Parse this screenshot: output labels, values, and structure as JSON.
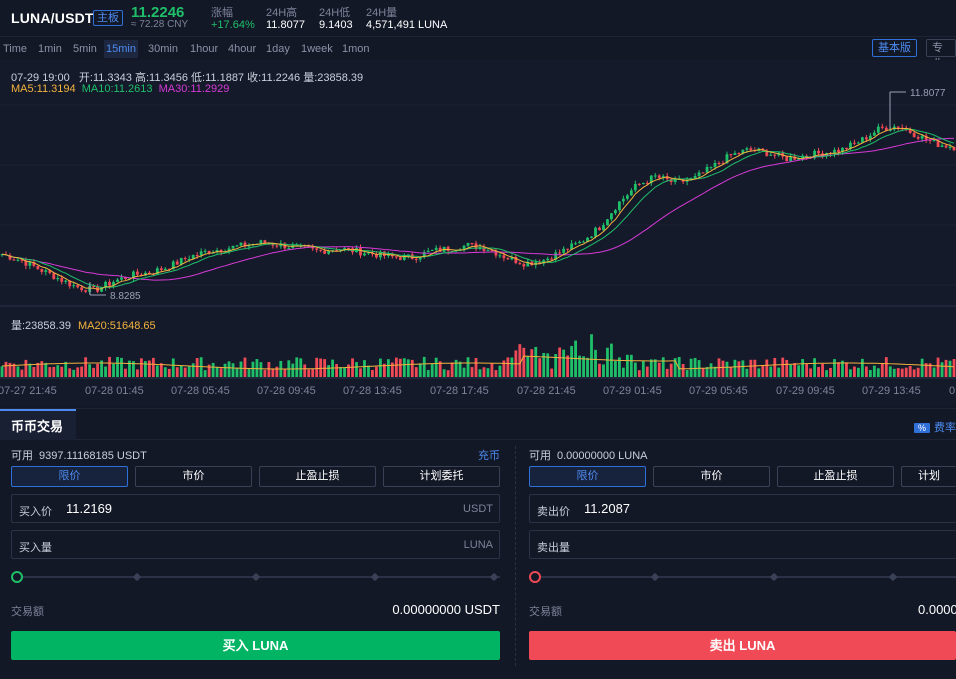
{
  "header": {
    "pair": "LUNA/USDT",
    "board": "主板",
    "last_price": "11.2246",
    "cny": "≈ 72.28 CNY",
    "stats": [
      {
        "label": "涨幅",
        "value": "+17.64%"
      },
      {
        "label": "24H高",
        "value": "11.8077"
      },
      {
        "label": "24H低",
        "value": "9.1403"
      },
      {
        "label": "24H量",
        "value": "4,571,491 LUNA"
      }
    ]
  },
  "timeframes": [
    "Time",
    "1min",
    "5min",
    "15min",
    "30min",
    "1hour",
    "4hour",
    "1day",
    "1week",
    "1mon"
  ],
  "active_timeframe": "15min",
  "version": {
    "basic": "基本版",
    "pro": "专业"
  },
  "ohlc": {
    "time": "07-29 19:00",
    "open": "开:11.3343",
    "high": "高:11.3456",
    "low": "低:11.1887",
    "close": "收:11.2246",
    "vol": "量:23858.39"
  },
  "ma": {
    "ma5": "MA5:11.3194",
    "ma10": "MA10:11.2613",
    "ma30": "MA30:11.2929"
  },
  "volume_legend": {
    "vol": "量:23858.39",
    "ma20": "MA20:51648.65"
  },
  "chart_data": {
    "type": "candlestick",
    "high_marker": "11.8077",
    "low_marker": "8.8285",
    "x_ticks": [
      "07-27 21:45",
      "07-28 01:45",
      "07-28 05:45",
      "07-28 09:45",
      "07-28 13:45",
      "07-28 17:45",
      "07-28 21:45",
      "07-29 01:45",
      "07-29 05:45",
      "07-29 09:45",
      "07-29 13:45",
      "0"
    ],
    "close_path": [
      9.45,
      9.35,
      9.2,
      9.05,
      8.9,
      8.85,
      9.0,
      9.1,
      9.15,
      9.25,
      9.4,
      9.5,
      9.55,
      9.6,
      9.65,
      9.6,
      9.55,
      9.5,
      9.55,
      9.5,
      9.45,
      9.4,
      9.4,
      9.5,
      9.55,
      9.6,
      9.55,
      9.4,
      9.3,
      9.35,
      9.5,
      9.65,
      9.9,
      10.3,
      10.6,
      10.75,
      10.65,
      10.7,
      10.9,
      11.1,
      11.2,
      11.15,
      11.05,
      11.1,
      11.15,
      11.2,
      11.35,
      11.55,
      11.6,
      11.45,
      11.3,
      11.25
    ],
    "colors": {
      "up": "#1fbf6a",
      "down": "#f04a56",
      "ma5": "#f3b33c",
      "ma10": "#1fbf6a",
      "ma30": "#d63ad6"
    }
  },
  "trade": {
    "tab": "币币交易",
    "fee": "费率",
    "fee_badge": "%",
    "buy": {
      "available_label": "可用",
      "available_value": "9397.11168185 USDT",
      "deposit": "充币",
      "order_types": [
        "限价",
        "市价",
        "止盈止损",
        "计划委托"
      ],
      "price_label": "买入价",
      "price_value": "11.2169",
      "price_unit": "USDT",
      "amount_label": "买入量",
      "amount_unit": "LUNA",
      "total_label": "交易额",
      "total_value": "0.00000000 USDT",
      "button": "买入 LUNA"
    },
    "sell": {
      "available_label": "可用",
      "available_value": "0.00000000 LUNA",
      "order_types": [
        "限价",
        "市价",
        "止盈止损",
        "计划"
      ],
      "price_label": "卖出价",
      "price_value": "11.2087",
      "amount_label": "卖出量",
      "total_label": "交易额",
      "total_value": "0.0000",
      "button": "卖出 LUNA"
    }
  }
}
